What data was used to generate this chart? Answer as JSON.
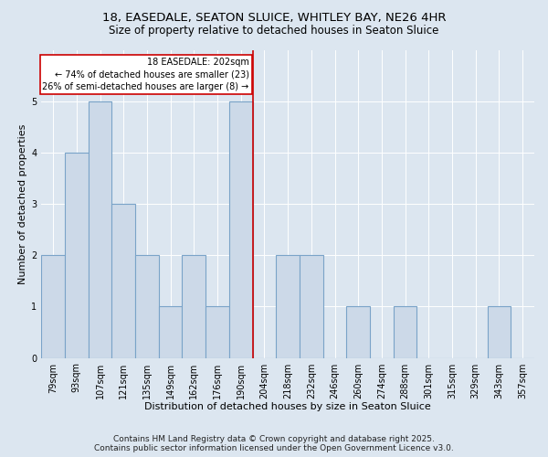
{
  "title": "18, EASEDALE, SEATON SLUICE, WHITLEY BAY, NE26 4HR",
  "subtitle": "Size of property relative to detached houses in Seaton Sluice",
  "xlabel": "Distribution of detached houses by size in Seaton Sluice",
  "ylabel": "Number of detached properties",
  "bins": [
    "79sqm",
    "93sqm",
    "107sqm",
    "121sqm",
    "135sqm",
    "149sqm",
    "162sqm",
    "176sqm",
    "190sqm",
    "204sqm",
    "218sqm",
    "232sqm",
    "246sqm",
    "260sqm",
    "274sqm",
    "288sqm",
    "301sqm",
    "315sqm",
    "329sqm",
    "343sqm",
    "357sqm"
  ],
  "bar_heights": [
    2,
    4,
    5,
    3,
    2,
    1,
    2,
    1,
    5,
    0,
    2,
    2,
    0,
    1,
    0,
    1,
    0,
    0,
    0,
    1,
    0
  ],
  "bar_color": "#ccd9e8",
  "bar_edge_color": "#7aa3c8",
  "bar_edge_width": 0.8,
  "property_line_x": 8.5,
  "annotation_title": "18 EASEDALE: 202sqm",
  "annotation_line1": "← 74% of detached houses are smaller (23)",
  "annotation_line2": "26% of semi-detached houses are larger (8) →",
  "annotation_box_color": "#ffffff",
  "annotation_box_edge_color": "#cc0000",
  "property_line_color": "#cc0000",
  "ylim": [
    0,
    6
  ],
  "yticks": [
    0,
    1,
    2,
    3,
    4,
    5
  ],
  "background_color": "#dce6f0",
  "plot_bg_color": "#dce6f0",
  "footer_line1": "Contains HM Land Registry data © Crown copyright and database right 2025.",
  "footer_line2": "Contains public sector information licensed under the Open Government Licence v3.0.",
  "title_fontsize": 9.5,
  "subtitle_fontsize": 8.5,
  "xlabel_fontsize": 8,
  "ylabel_fontsize": 8,
  "tick_fontsize": 7,
  "footer_fontsize": 6.5,
  "annot_fontsize": 7
}
